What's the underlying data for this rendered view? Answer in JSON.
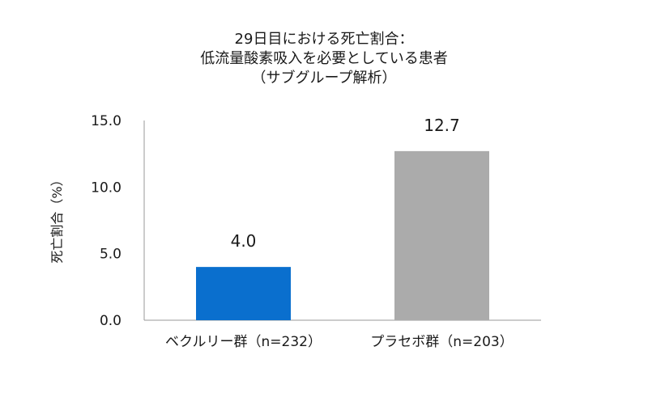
{
  "chart_data": {
    "type": "bar",
    "title_lines": [
      "29日目における死亡割合：",
      "低流量酸素吸入を必要としている患者",
      "（サブグループ解析）"
    ],
    "ylabel": "死亡割合（%）",
    "xlabel": "",
    "categories": [
      "ベクルリー群（n=232）",
      "プラセボ群（n=203）"
    ],
    "values": [
      4.0,
      12.7
    ],
    "data_labels": [
      "4.0",
      "12.7"
    ],
    "bar_colors": [
      "#0a6fce",
      "#ababab"
    ],
    "ylim": [
      0,
      15
    ],
    "yticks": [
      0,
      5,
      10,
      15
    ],
    "ytick_labels": [
      "0.0",
      "5.0",
      "10.0",
      "15.0"
    ],
    "grid": false,
    "legend": "none"
  }
}
